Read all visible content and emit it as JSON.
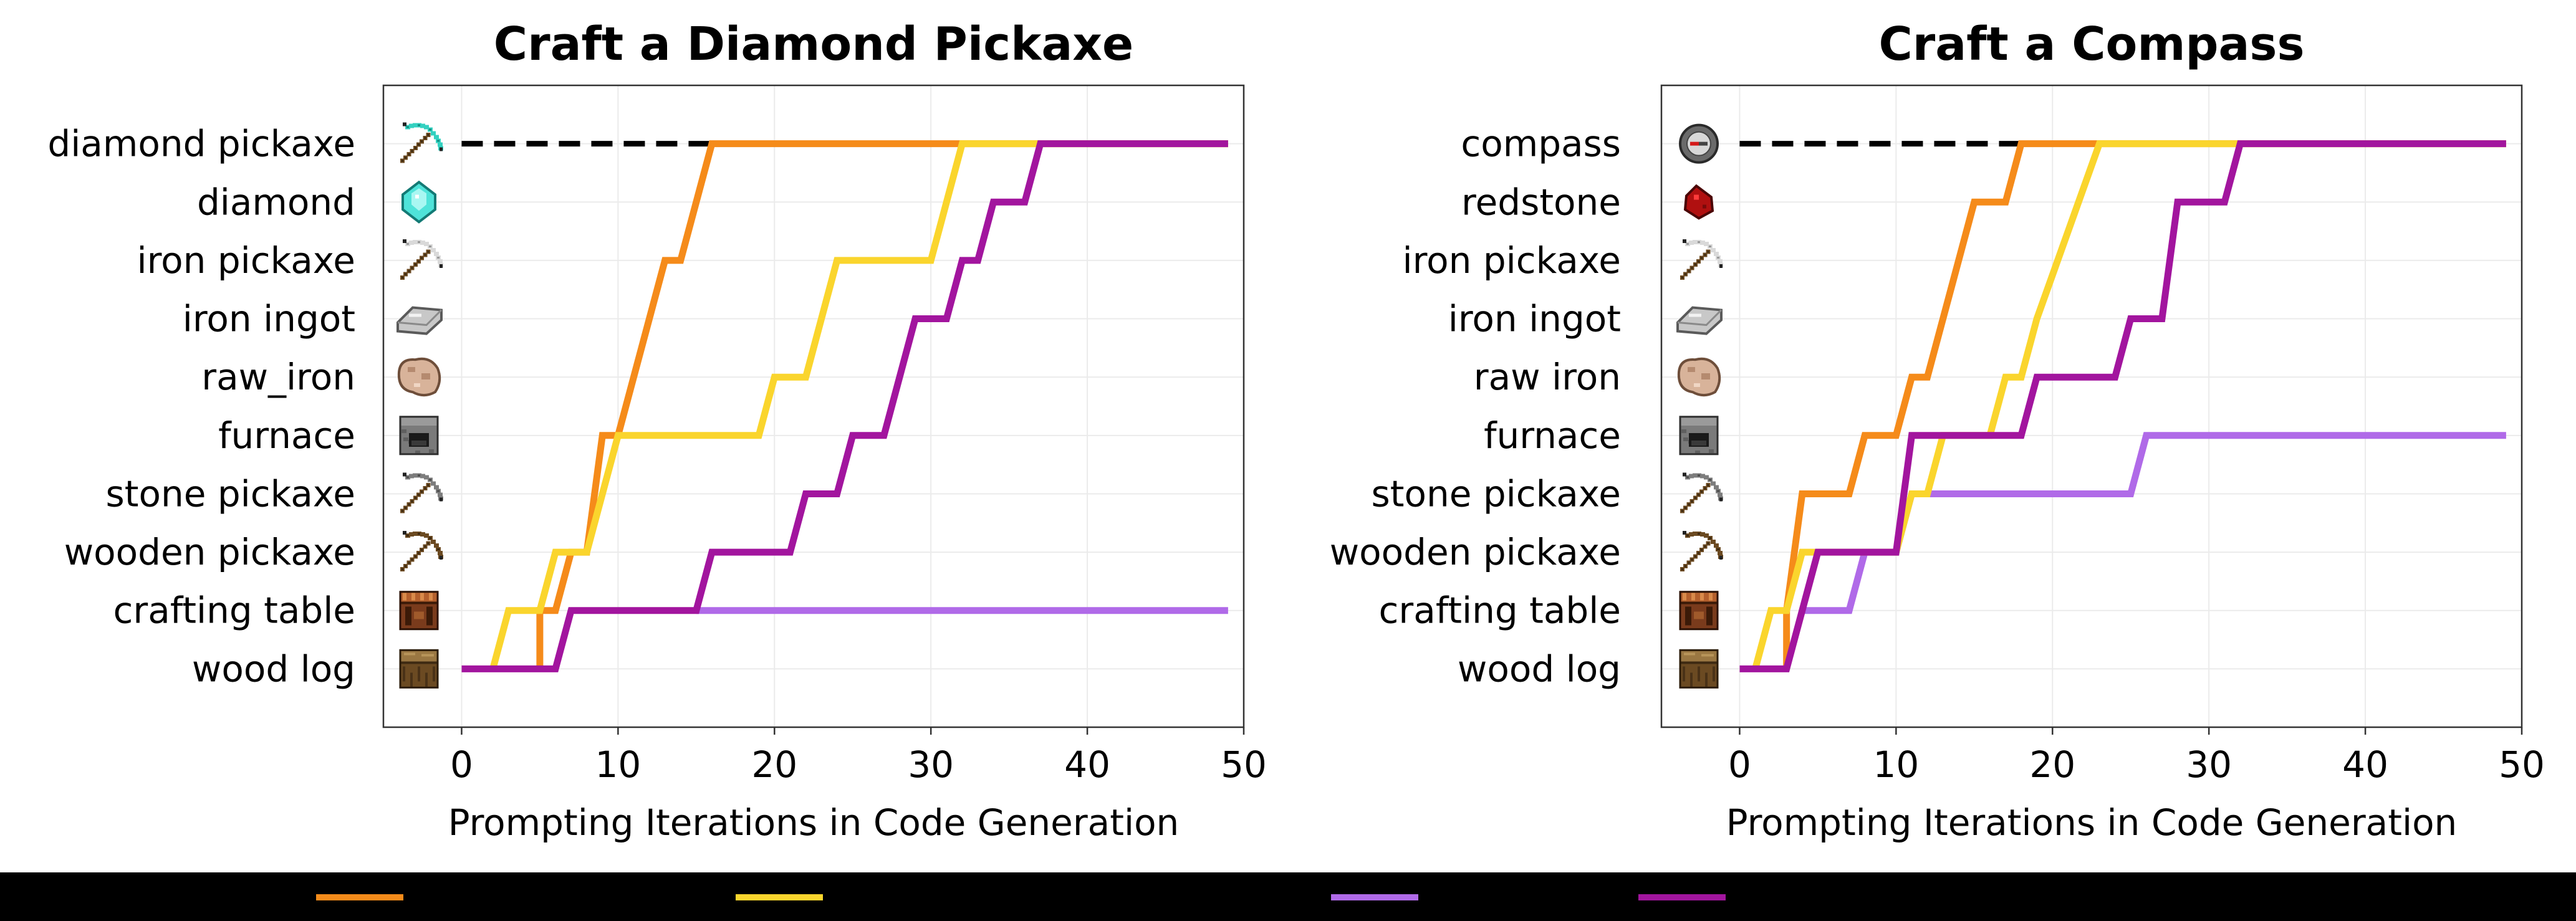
{
  "colors": {
    "series_1": "#F58B1A",
    "series_2": "#FAD52D",
    "series_3": "#B06AE8",
    "series_4": "#A2159E",
    "target_line": "#000000"
  },
  "chart_data": [
    {
      "type": "line",
      "title": "Craft a Diamond Pickaxe",
      "xlabel": "Prompting Iterations in Code Generation",
      "ylabel": "",
      "xlim": [
        -5,
        50
      ],
      "ylim": [
        -1,
        10
      ],
      "x_ticks": [
        "0",
        "10",
        "20",
        "30",
        "40",
        "50"
      ],
      "categories": [
        "wood log",
        "crafting table",
        "wooden pickaxe",
        "stone pickaxe",
        "furnace",
        "raw_iron",
        "iron ingot",
        "iron pickaxe",
        "diamond",
        "diamond pickaxe"
      ],
      "icons": [
        "wood-log-icon",
        "crafting-table-icon",
        "wooden-pickaxe-icon",
        "stone-pickaxe-icon",
        "furnace-icon",
        "raw-iron-icon",
        "iron-ingot-icon",
        "iron-pickaxe-icon",
        "diamond-icon",
        "diamond-pickaxe-icon"
      ],
      "target_line": {
        "x": [
          0,
          16
        ],
        "level": 9
      },
      "series": [
        {
          "points": [
            [
              5,
              0
            ],
            [
              5,
              1
            ],
            [
              6,
              1
            ],
            [
              7,
              2
            ],
            [
              8,
              2
            ],
            [
              9,
              4
            ],
            [
              10,
              4
            ],
            [
              13,
              7
            ],
            [
              14,
              7
            ],
            [
              16,
              9
            ],
            [
              49,
              9
            ]
          ]
        },
        {
          "points": [
            [
              2,
              0
            ],
            [
              3,
              1
            ],
            [
              5,
              1
            ],
            [
              6,
              2
            ],
            [
              8,
              2
            ],
            [
              10,
              4
            ],
            [
              19,
              4
            ],
            [
              20,
              5
            ],
            [
              22,
              5
            ],
            [
              24,
              7
            ],
            [
              30,
              7
            ],
            [
              32,
              9
            ],
            [
              49,
              9
            ]
          ]
        },
        {
          "points": [
            [
              15,
              1
            ],
            [
              49,
              1
            ]
          ]
        },
        {
          "points": [
            [
              0,
              0
            ],
            [
              6,
              0
            ],
            [
              7,
              1
            ],
            [
              15,
              1
            ],
            [
              16,
              2
            ],
            [
              21,
              2
            ],
            [
              22,
              3
            ],
            [
              24,
              3
            ],
            [
              25,
              4
            ],
            [
              27,
              4
            ],
            [
              29,
              6
            ],
            [
              31,
              6
            ],
            [
              32,
              7
            ],
            [
              33,
              7
            ],
            [
              34,
              8
            ],
            [
              36,
              8
            ],
            [
              37,
              9
            ],
            [
              49,
              9
            ]
          ]
        }
      ]
    },
    {
      "type": "line",
      "title": "Craft a Compass",
      "xlabel": "Prompting Iterations in Code Generation",
      "ylabel": "",
      "xlim": [
        -5,
        50
      ],
      "ylim": [
        -1,
        10
      ],
      "x_ticks": [
        "0",
        "10",
        "20",
        "30",
        "40",
        "50"
      ],
      "categories": [
        "wood log",
        "crafting table",
        "wooden pickaxe",
        "stone pickaxe",
        "furnace",
        "raw iron",
        "iron ingot",
        "iron pickaxe",
        "redstone",
        "compass"
      ],
      "icons": [
        "wood-log-icon",
        "crafting-table-icon",
        "wooden-pickaxe-icon",
        "stone-pickaxe-icon",
        "furnace-icon",
        "raw-iron-icon",
        "iron-ingot-icon",
        "iron-pickaxe-icon",
        "redstone-icon",
        "compass-icon"
      ],
      "target_line": {
        "x": [
          0,
          18
        ],
        "level": 9
      },
      "series": [
        {
          "points": [
            [
              3,
              0
            ],
            [
              3,
              1
            ],
            [
              4,
              3
            ],
            [
              7,
              3
            ],
            [
              8,
              4
            ],
            [
              10,
              4
            ],
            [
              11,
              5
            ],
            [
              12,
              5
            ],
            [
              15,
              8
            ],
            [
              17,
              8
            ],
            [
              18,
              9
            ],
            [
              49,
              9
            ]
          ]
        },
        {
          "points": [
            [
              1,
              0
            ],
            [
              2,
              1
            ],
            [
              3,
              1
            ],
            [
              4,
              2
            ],
            [
              10,
              2
            ],
            [
              11,
              3
            ],
            [
              12,
              3
            ],
            [
              13,
              4
            ],
            [
              16,
              4
            ],
            [
              17,
              5
            ],
            [
              18,
              5
            ],
            [
              19,
              6
            ],
            [
              23,
              9
            ],
            [
              49,
              9
            ]
          ]
        },
        {
          "points": [
            [
              4,
              1
            ],
            [
              7,
              1
            ],
            [
              8,
              2
            ],
            [
              10,
              2
            ],
            [
              11,
              3
            ],
            [
              25,
              3
            ],
            [
              26,
              4
            ],
            [
              49,
              4
            ]
          ]
        },
        {
          "points": [
            [
              0,
              0
            ],
            [
              3,
              0
            ],
            [
              4,
              1
            ],
            [
              5,
              2
            ],
            [
              10,
              2
            ],
            [
              11,
              4
            ],
            [
              18,
              4
            ],
            [
              19,
              5
            ],
            [
              24,
              5
            ],
            [
              25,
              6
            ],
            [
              27,
              6
            ],
            [
              28,
              8
            ],
            [
              31,
              8
            ],
            [
              32,
              9
            ],
            [
              49,
              9
            ]
          ]
        }
      ]
    }
  ]
}
